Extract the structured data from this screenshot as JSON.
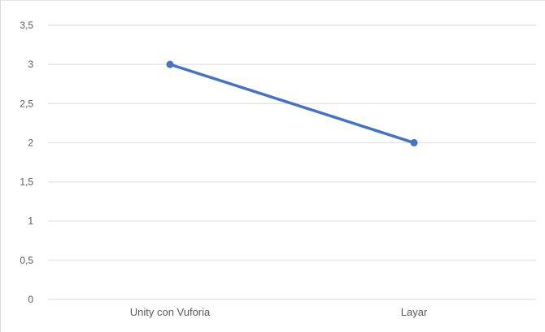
{
  "chart_data": {
    "type": "line",
    "categories": [
      "Unity con Vuforia",
      "Layar"
    ],
    "series": [
      {
        "values": [
          3,
          2
        ]
      }
    ],
    "yticks": [
      "0",
      "0,5",
      "1",
      "1,5",
      "2",
      "2,5",
      "3",
      "3,5"
    ],
    "ylim": [
      0,
      3.5
    ],
    "grid": true,
    "legend": "none",
    "title": "",
    "xlabel": "",
    "ylabel": "",
    "colors": {
      "series": "#4472c4",
      "grid": "#d9d9d9",
      "text": "#595959"
    }
  }
}
